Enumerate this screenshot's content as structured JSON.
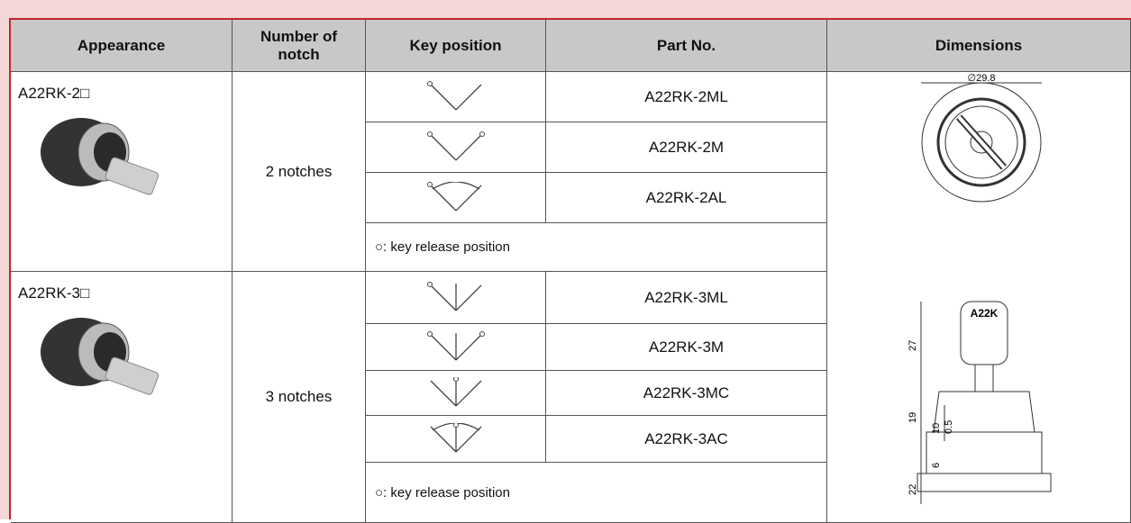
{
  "header": {
    "columns": [
      "Appearance",
      "Number of notch",
      "Key position",
      "Part No.",
      "Dimensions"
    ]
  },
  "groups": [
    {
      "appearance": "A22RK-2□",
      "notches": "2 notches",
      "parts": [
        "A22RK-2ML",
        "A22RK-2M",
        "A22RK-2AL"
      ],
      "note": "○: key release position"
    },
    {
      "appearance": "A22RK-3□",
      "notches": "3 notches",
      "parts": [
        "A22RK-3ML",
        "A22RK-3M",
        "A22RK-3MC",
        "A22RK-3AC"
      ],
      "note": "○: key release position"
    }
  ],
  "dimensions": {
    "diameter": "∅29.8",
    "key_logo": "A22K",
    "labels": [
      "27",
      "19",
      "10",
      "0.5",
      "22",
      "6"
    ]
  }
}
